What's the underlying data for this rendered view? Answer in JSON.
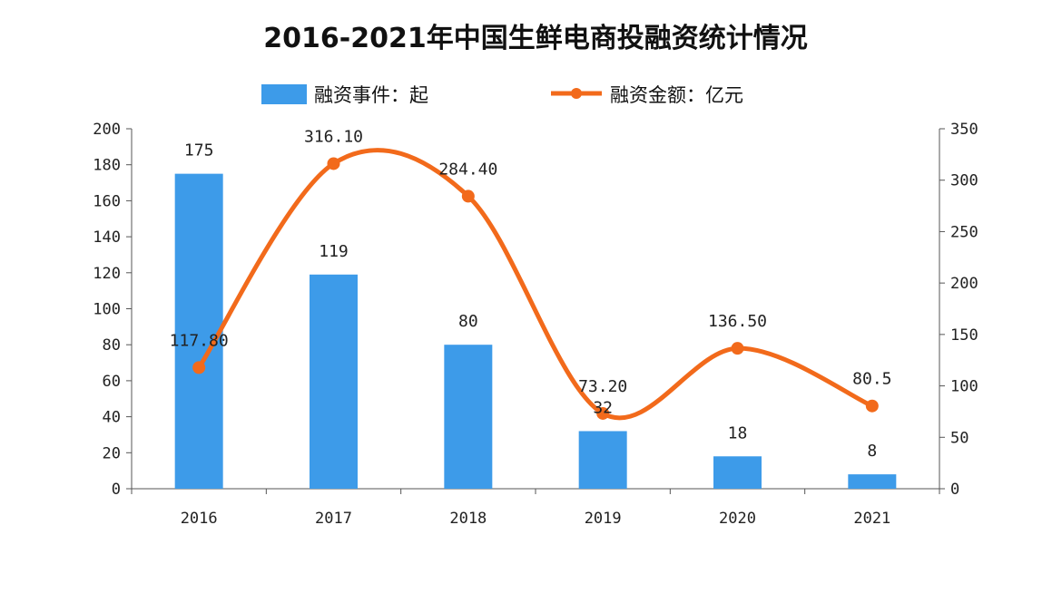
{
  "chart_data": {
    "type": "bar+line",
    "title": "2016-2021年中国生鲜电商投融资统计情况",
    "categories": [
      "2016",
      "2017",
      "2018",
      "2019",
      "2020",
      "2021"
    ],
    "series": [
      {
        "name": "融资事件：起",
        "type": "bar",
        "axis": "left",
        "color": "#3d9be9",
        "values": [
          175,
          119,
          80,
          32,
          18,
          8
        ],
        "labels": [
          "175",
          "119",
          "80",
          "32",
          "18",
          "8"
        ]
      },
      {
        "name": "融资金额：亿元",
        "type": "line",
        "axis": "right",
        "smooth": true,
        "color": "#f26a1b",
        "values": [
          117.8,
          316.1,
          284.4,
          73.2,
          136.5,
          80.5
        ],
        "labels": [
          "117.80",
          "316.10",
          "284.40",
          "73.20",
          "136.50",
          "80.5"
        ]
      }
    ],
    "yleft": {
      "ylim": [
        0,
        200
      ],
      "ticks": [
        0,
        20,
        40,
        60,
        80,
        100,
        120,
        140,
        160,
        180,
        200
      ]
    },
    "yright": {
      "ylim": [
        0,
        350
      ],
      "ticks": [
        0,
        50,
        100,
        150,
        200,
        250,
        300,
        350
      ]
    },
    "legend": "top",
    "grid": false
  }
}
